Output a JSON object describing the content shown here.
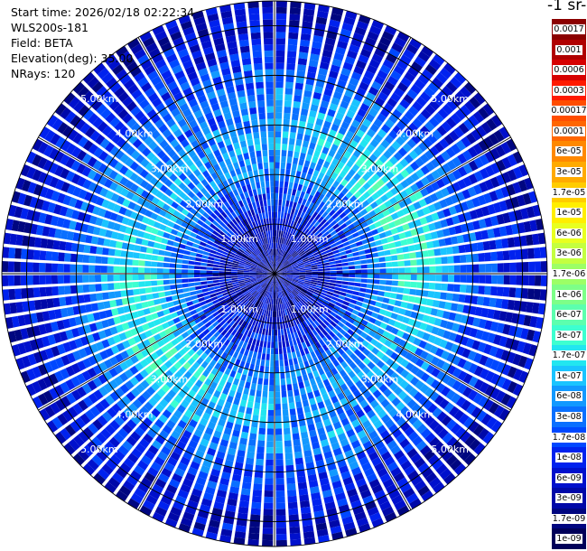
{
  "header": {
    "start_time": "Start time: 2026/02/18 02:22:34",
    "instrument": "WLS200s-181",
    "field": "Field: BETA",
    "elevation": "Elevation(deg): 35.00",
    "nrays": "NRays: 120"
  },
  "unit_label": "-1 sr-",
  "colorbar": {
    "labels": [
      "0.0017",
      "0.001",
      "0.0006",
      "0.0003",
      "0.00017",
      "0.0001",
      "6e-05",
      "3e-05",
      "1.7e-05",
      "1e-05",
      "6e-06",
      "3e-06",
      "1.7e-06",
      "1e-06",
      "6e-07",
      "3e-07",
      "1.7e-07",
      "1e-07",
      "6e-08",
      "3e-08",
      "1.7e-08",
      "1e-08",
      "6e-09",
      "3e-09",
      "1.7e-09",
      "1e-09"
    ],
    "colors": [
      "#8b0000",
      "#b00000",
      "#d60000",
      "#ff1a00",
      "#ff4d00",
      "#ff6600",
      "#ff8800",
      "#ffaa00",
      "#ffcc00",
      "#ffee00",
      "#e8ff20",
      "#c4ff40",
      "#9cff66",
      "#7dff88",
      "#5cffae",
      "#3dffd0",
      "#22e6f0",
      "#1ac4ff",
      "#1299ff",
      "#0a70ff",
      "#0048ff",
      "#0022ee",
      "#0010cc",
      "#0008a8",
      "#000680",
      "#000059"
    ]
  },
  "chart_data": {
    "type": "heatmap",
    "subtype": "polar PPI scan",
    "field": "BETA",
    "elevation_deg": 35.0,
    "nrays": 120,
    "range_unit": "km",
    "range_max_km": 5.5,
    "ring_labels": [
      "1.00km",
      "2.00km",
      "3.00km",
      "4.00km",
      "5.00km"
    ],
    "ring_values_km": [
      1,
      2,
      3,
      4,
      5
    ],
    "label_bearings_deg": [
      45,
      135,
      225,
      315
    ],
    "spoke_bearings_deg": [
      0,
      30,
      60,
      90,
      120,
      150,
      180,
      210,
      240,
      270,
      300,
      330
    ],
    "color_scale": "log",
    "color_range": [
      1e-09,
      0.0017
    ],
    "radial_profile_log10": [
      [
        0.0,
        -8.4
      ],
      [
        1.0,
        -8.2
      ],
      [
        2.0,
        -7.4
      ],
      [
        2.6,
        -6.9
      ],
      [
        3.2,
        -7.1
      ],
      [
        4.0,
        -7.6
      ],
      [
        4.8,
        -8.1
      ],
      [
        5.5,
        -8.3
      ]
    ]
  }
}
